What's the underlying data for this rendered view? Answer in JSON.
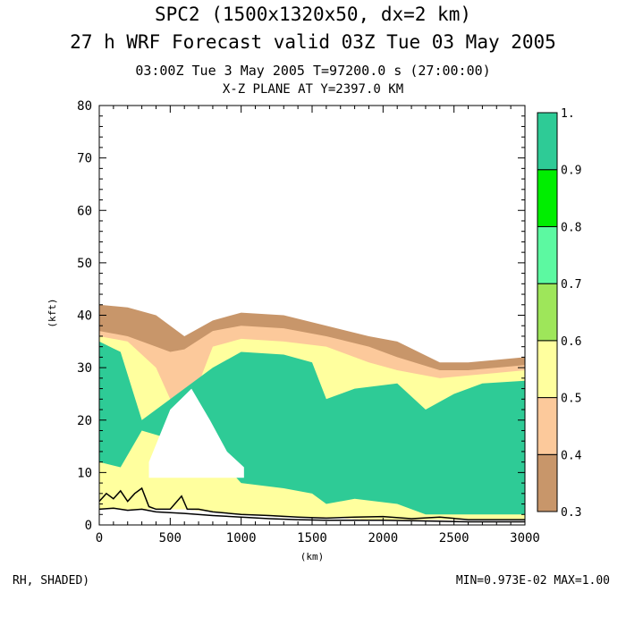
{
  "header": {
    "title_line1": "SPC2 (1500x1320x50, dx=2 km)",
    "title_line2": "27 h WRF Forecast valid 03Z Tue 03 May 2005",
    "time_line": "03:00Z Tue  3 May 2005     T=97200.0 s (27:00:00)",
    "plane_line": "X-Z PLANE AT Y=2397.0 KM"
  },
  "footer": {
    "field_label": "RH, SHADED)",
    "minmax_label": "MIN=0.973E-02 MAX=1.00"
  },
  "chart_data": {
    "type": "heatmap",
    "title": "X-Z PLANE AT Y=2397.0 KM",
    "xlabel": "(km)",
    "ylabel": "(kft)",
    "xlim": [
      0,
      3000
    ],
    "ylim": [
      0,
      80
    ],
    "x_ticks": [
      0,
      500,
      1000,
      1500,
      2000,
      2500,
      3000
    ],
    "y_ticks": [
      0,
      10,
      20,
      30,
      40,
      50,
      60,
      70,
      80
    ],
    "grid": false,
    "variable": "RH",
    "min": 0.00973,
    "max": 1.0,
    "colorbar": {
      "levels": [
        0.3,
        0.4,
        0.5,
        0.6,
        0.7,
        0.8,
        0.9,
        1.0
      ],
      "tick_labels": [
        "0.3",
        "0.4",
        "0.5",
        "0.6",
        "0.7",
        "0.8",
        "0.9",
        "1."
      ],
      "colors": [
        "#c8966a",
        "#fcc99b",
        "#ffff9e",
        "#9ee65a",
        "#5cf9a1",
        "#00ee00",
        "#2ecb96"
      ]
    },
    "cloud_layers": [
      {
        "name": "rh_0.3",
        "color": "#c8966a",
        "x": [
          0,
          200,
          400,
          500,
          600,
          800,
          1000,
          1300,
          1600,
          1900,
          2100,
          2400,
          2600,
          2800,
          3000
        ],
        "top": [
          42,
          41.5,
          40,
          38,
          36,
          39,
          40.5,
          40,
          38,
          36,
          35,
          31,
          31,
          31.5,
          32
        ],
        "bottom": [
          3,
          3,
          3,
          3,
          3,
          2.5,
          2,
          1.5,
          1.5,
          1,
          1,
          1,
          1,
          1,
          1
        ]
      },
      {
        "name": "rh_0.4",
        "color": "#fcc99b",
        "x": [
          0,
          200,
          400,
          500,
          600,
          800,
          1000,
          1300,
          1600,
          1900,
          2100,
          2400,
          2600,
          2800,
          3000
        ],
        "top": [
          37,
          36,
          34,
          33,
          33.5,
          37,
          38,
          37.5,
          36,
          34,
          32,
          29.5,
          29.5,
          30,
          30.5
        ],
        "bottom": [
          3,
          3,
          3,
          3,
          3,
          2.5,
          2,
          1.5,
          1.5,
          1,
          1,
          1,
          1,
          1,
          1
        ]
      },
      {
        "name": "rh_0.5",
        "color": "#ffff9e",
        "x": [
          0,
          200,
          400,
          500,
          600,
          800,
          1000,
          1300,
          1600,
          1900,
          2100,
          2400,
          2600,
          2800,
          3000
        ],
        "top": [
          36,
          35,
          30,
          24,
          20,
          34,
          35.5,
          35,
          34,
          31,
          29.5,
          28,
          28.5,
          29,
          29.5
        ],
        "bottom": [
          3,
          3,
          3,
          3,
          3,
          2.5,
          2,
          1.5,
          1.5,
          1,
          1,
          1,
          1,
          1,
          1
        ]
      },
      {
        "name": "rh_0.9",
        "color": "#2ecb96",
        "x": [
          0,
          150,
          300,
          800,
          1000,
          1300,
          1500,
          1600,
          1800,
          2100,
          2300,
          2500,
          2700,
          3000
        ],
        "top": [
          35,
          33,
          20,
          30,
          33,
          32.5,
          31,
          24,
          26,
          27,
          22,
          25,
          27,
          27.5
        ],
        "bottom": [
          12,
          11,
          18,
          14,
          8,
          7,
          6,
          4,
          5,
          4,
          2,
          2,
          2,
          2
        ]
      }
    ],
    "dry_region": {
      "x": [
        350,
        500,
        650,
        780,
        900,
        1020
      ],
      "top": [
        12,
        22,
        26,
        20,
        14,
        11
      ],
      "bottom": [
        9,
        9,
        9,
        9,
        9,
        9
      ]
    },
    "terrain_lines": [
      {
        "name": "terrain_max",
        "x": [
          0,
          50,
          100,
          150,
          200,
          250,
          300,
          350,
          400,
          500,
          580,
          620,
          700,
          800,
          1000,
          1200,
          1400,
          1600,
          1800,
          2000,
          2200,
          2400,
          2600,
          2800,
          3000
        ],
        "y": [
          4.5,
          6,
          5,
          6.5,
          4.5,
          6,
          7,
          3.5,
          3,
          3,
          5.5,
          3,
          3,
          2.5,
          2,
          1.8,
          1.5,
          1.3,
          1.5,
          1.6,
          1.2,
          1.5,
          1.0,
          1.0,
          1.0
        ]
      },
      {
        "name": "terrain_min",
        "x": [
          0,
          100,
          200,
          300,
          400,
          600,
          800,
          1000,
          1200,
          1400,
          1600,
          1800,
          2000,
          2200,
          2400,
          2600,
          2800,
          3000
        ],
        "y": [
          3,
          3.2,
          2.8,
          3,
          2.5,
          2.2,
          1.8,
          1.5,
          1.2,
          1.0,
          0.9,
          0.9,
          0.9,
          0.8,
          0.7,
          0.6,
          0.6,
          0.6
        ]
      }
    ]
  }
}
